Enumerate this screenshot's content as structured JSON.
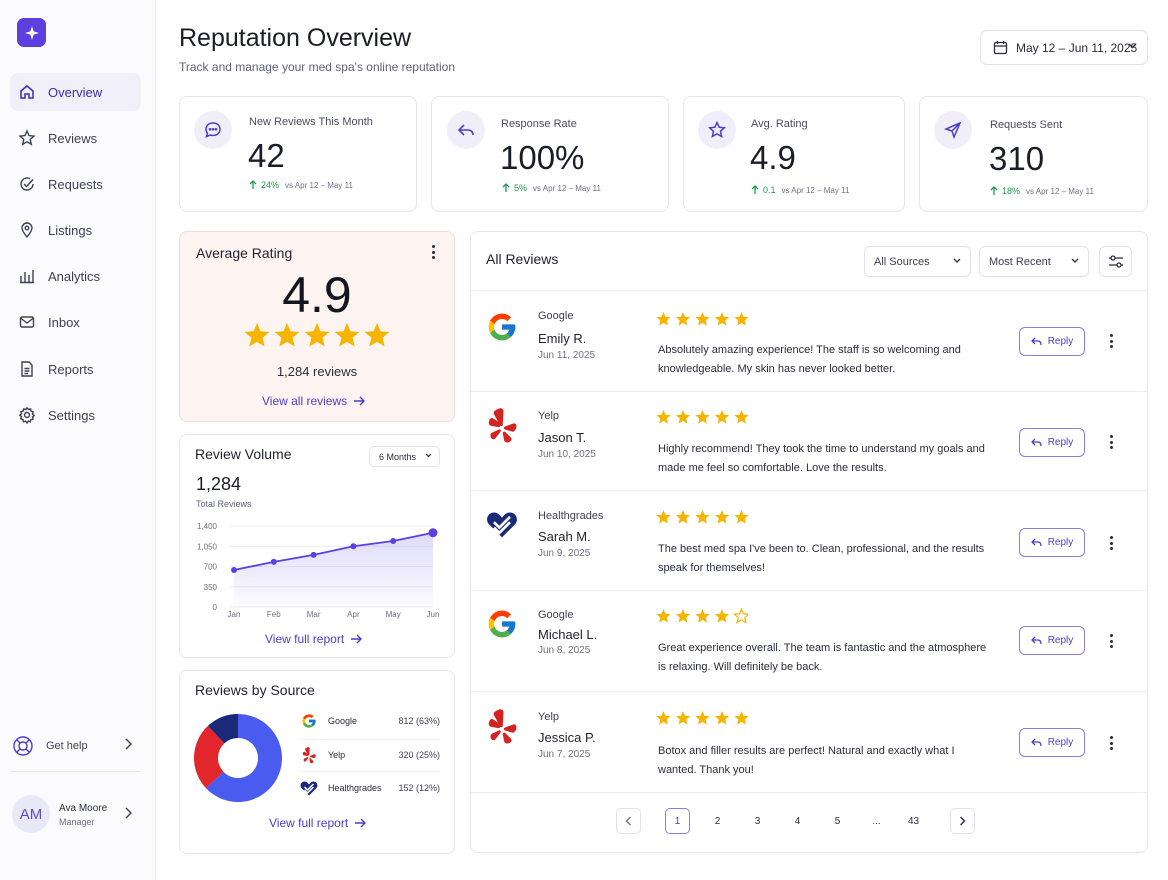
{
  "brand": {
    "accent": "#5b3fe0",
    "star": "#f5b400",
    "positive": "#1c9a4f"
  },
  "sidebar": {
    "items": [
      {
        "label": "Overview",
        "icon": "home-icon"
      },
      {
        "label": "Reviews",
        "icon": "star-icon"
      },
      {
        "label": "Requests",
        "icon": "check-circle-icon"
      },
      {
        "label": "Listings",
        "icon": "map-pin-icon"
      },
      {
        "label": "Analytics",
        "icon": "bar-chart-icon"
      },
      {
        "label": "Inbox",
        "icon": "mail-icon"
      },
      {
        "label": "Reports",
        "icon": "document-icon"
      },
      {
        "label": "Settings",
        "icon": "gear-icon"
      }
    ],
    "help_label": "Get help",
    "user": {
      "initials": "AM",
      "name": "Ava Moore",
      "role": "Manager"
    }
  },
  "header": {
    "title": "Reputation Overview",
    "subtitle": "Track and manage your med spa's online reputation",
    "date_range": "May 12 – Jun 11, 2025"
  },
  "stats": [
    {
      "label": "New Reviews This Month",
      "value": "42",
      "change": "24%",
      "compare": "vs Apr 12 – May 11",
      "icon": "chat-bubble-icon"
    },
    {
      "label": "Response Rate",
      "value": "100%",
      "change": "5%",
      "compare": "vs Apr 12 – May 11",
      "icon": "reply-arrow-icon"
    },
    {
      "label": "Avg. Rating",
      "value": "4.9",
      "change": "0.1",
      "compare": "vs Apr 12 – May 11",
      "icon": "star-icon"
    },
    {
      "label": "Requests Sent",
      "value": "310",
      "change": "18%",
      "compare": "vs Apr 12 – May 11",
      "icon": "send-icon"
    }
  ],
  "average_rating": {
    "title": "Average Rating",
    "value": "4.9",
    "stars": 5,
    "count_label": "1,284 reviews",
    "link": "View all reviews"
  },
  "review_volume": {
    "title": "Review Volume",
    "period": "6 Months",
    "total": "1,284",
    "total_label": "Total Reviews",
    "link": "View full report"
  },
  "chart_data": {
    "type": "area",
    "categories": [
      "Jan",
      "Feb",
      "Mar",
      "Apr",
      "May",
      "Jun"
    ],
    "values": [
      640,
      780,
      900,
      1050,
      1140,
      1284
    ],
    "y_ticks": [
      "1,400",
      "1,050",
      "700",
      "350",
      "0"
    ],
    "ylim": [
      0,
      1400
    ],
    "title": "",
    "xlabel": "",
    "ylabel": "",
    "grid": true
  },
  "reviews_by_source": {
    "title": "Reviews by Source",
    "sources": [
      {
        "name": "Google",
        "value": "812 (63%)",
        "share": 0.63,
        "color": "#4a5cf0"
      },
      {
        "name": "Yelp",
        "value": "320 (25%)",
        "share": 0.25,
        "color": "#e3262b"
      },
      {
        "name": "Healthgrades",
        "value": "152 (12%)",
        "share": 0.12,
        "color": "#1b2a78"
      }
    ],
    "link": "View full report"
  },
  "reviews": {
    "title": "All Reviews",
    "source_filter": "All Sources",
    "sort": "Most Recent",
    "reply_label": "Reply",
    "items": [
      {
        "source": "Google",
        "name": "Emily R.",
        "date": "Jun 11, 2025",
        "rating": 5,
        "lines": [
          "Absolutely amazing experience! The staff is so welcoming and",
          "knowledgeable. My skin has never looked better."
        ]
      },
      {
        "source": "Yelp",
        "name": "Jason T.",
        "date": "Jun 10, 2025",
        "rating": 5,
        "lines": [
          "Highly recommend! They took the time to understand my goals and",
          "made me feel so comfortable. Love the results."
        ]
      },
      {
        "source": "Healthgrades",
        "name": "Sarah M.",
        "date": "Jun 9, 2025",
        "rating": 5,
        "lines": [
          "The best med spa I've been to. Clean, professional, and the results",
          "speak for themselves!"
        ]
      },
      {
        "source": "Google",
        "name": "Michael L.",
        "date": "Jun 8, 2025",
        "rating": 4,
        "lines": [
          "Great experience overall. The team is fantastic and the atmosphere",
          "is relaxing. Will definitely be back."
        ]
      },
      {
        "source": "Yelp",
        "name": "Jessica P.",
        "date": "Jun 7, 2025",
        "rating": 5,
        "lines": [
          "Botox and filler results are perfect! Natural and exactly what I",
          "wanted. Thank you!"
        ]
      }
    ]
  },
  "pagination": {
    "pages": [
      "1",
      "2",
      "3",
      "4",
      "5",
      "...",
      "43"
    ],
    "current": "1"
  }
}
